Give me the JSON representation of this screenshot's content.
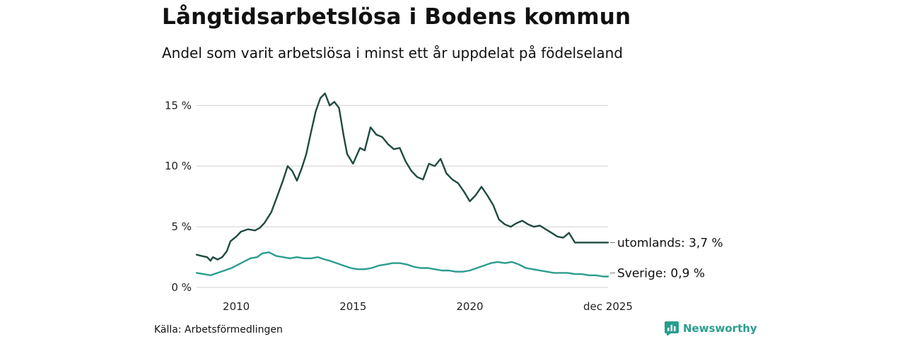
{
  "header": {
    "title": "Långtidsarbetslösa i Bodens kommun",
    "subtitle": "Andel som varit arbetslösa i minst ett år uppdelat på födelseland"
  },
  "footer": {
    "source": "Källa: Arbetsförmedlingen",
    "brand": "Newsworthy"
  },
  "colors": {
    "utomlands": "#1f4a42",
    "sverige": "#2a9d8f",
    "grid": "#d9d9d9"
  },
  "chart_data": {
    "type": "line",
    "title": "Långtidsarbetslösa i Bodens kommun",
    "xlabel": "",
    "ylabel": "",
    "xlim": [
      2008.3,
      2025.92
    ],
    "ylim": [
      0,
      17
    ],
    "y_ticks": [
      {
        "value": 0,
        "label": "0 %"
      },
      {
        "value": 5,
        "label": "5 %"
      },
      {
        "value": 10,
        "label": "10 %"
      },
      {
        "value": 15,
        "label": "15 %"
      }
    ],
    "x_ticks": [
      {
        "value": 2010,
        "label": "2010"
      },
      {
        "value": 2015,
        "label": "2015"
      },
      {
        "value": 2020,
        "label": "2020"
      },
      {
        "value": 2025.92,
        "label": "dec 2025"
      }
    ],
    "grid": true,
    "series": [
      {
        "name": "utomlands",
        "end_label": "utomlands: 3,7 %",
        "x": [
          2008.3,
          2008.5,
          2008.75,
          2008.9,
          2009.0,
          2009.2,
          2009.4,
          2009.6,
          2009.75,
          2010.0,
          2010.2,
          2010.5,
          2010.8,
          2011.0,
          2011.2,
          2011.5,
          2011.75,
          2012.0,
          2012.2,
          2012.4,
          2012.6,
          2012.8,
          2013.0,
          2013.2,
          2013.4,
          2013.6,
          2013.8,
          2013.9,
          2014.0,
          2014.2,
          2014.4,
          2014.6,
          2014.75,
          2015.0,
          2015.3,
          2015.5,
          2015.75,
          2016.0,
          2016.25,
          2016.5,
          2016.75,
          2017.0,
          2017.25,
          2017.5,
          2017.75,
          2018.0,
          2018.25,
          2018.5,
          2018.75,
          2019.0,
          2019.25,
          2019.5,
          2019.75,
          2020.0,
          2020.25,
          2020.5,
          2020.75,
          2021.0,
          2021.25,
          2021.5,
          2021.75,
          2022.0,
          2022.25,
          2022.5,
          2022.75,
          2023.0,
          2023.25,
          2023.5,
          2023.75,
          2024.0,
          2024.25,
          2024.5,
          2024.75,
          2025.0,
          2025.25,
          2025.5,
          2025.75,
          2025.92
        ],
        "values": [
          2.7,
          2.6,
          2.5,
          2.2,
          2.5,
          2.3,
          2.5,
          3.0,
          3.8,
          4.2,
          4.6,
          4.8,
          4.7,
          4.9,
          5.3,
          6.2,
          7.5,
          8.8,
          10.0,
          9.6,
          8.8,
          9.8,
          11.0,
          12.8,
          14.5,
          15.6,
          16.0,
          15.5,
          15.0,
          15.3,
          14.8,
          12.5,
          11.0,
          10.2,
          11.5,
          11.3,
          13.2,
          12.6,
          12.4,
          11.8,
          11.4,
          11.5,
          10.4,
          9.6,
          9.1,
          8.9,
          10.2,
          10.0,
          10.6,
          9.4,
          8.9,
          8.6,
          7.9,
          7.1,
          7.6,
          8.3,
          7.6,
          6.8,
          5.6,
          5.2,
          5.0,
          5.3,
          5.5,
          5.2,
          5.0,
          5.1,
          4.8,
          4.5,
          4.2,
          4.1,
          4.5,
          3.7,
          3.7,
          3.7,
          3.7,
          3.7,
          3.7,
          3.7
        ]
      },
      {
        "name": "Sverige",
        "end_label": "Sverige: 0,9 %",
        "x": [
          2008.3,
          2008.6,
          2008.9,
          2009.2,
          2009.5,
          2009.8,
          2010.0,
          2010.3,
          2010.6,
          2010.9,
          2011.1,
          2011.4,
          2011.7,
          2012.0,
          2012.3,
          2012.6,
          2012.9,
          2013.2,
          2013.5,
          2013.8,
          2014.0,
          2014.3,
          2014.6,
          2014.9,
          2015.2,
          2015.5,
          2015.8,
          2016.1,
          2016.4,
          2016.7,
          2017.0,
          2017.3,
          2017.6,
          2017.9,
          2018.2,
          2018.5,
          2018.8,
          2019.1,
          2019.4,
          2019.7,
          2020.0,
          2020.3,
          2020.6,
          2020.9,
          2021.2,
          2021.5,
          2021.8,
          2022.1,
          2022.4,
          2022.7,
          2023.0,
          2023.3,
          2023.6,
          2023.9,
          2024.2,
          2024.5,
          2024.8,
          2025.1,
          2025.4,
          2025.7,
          2025.92
        ],
        "values": [
          1.2,
          1.1,
          1.0,
          1.2,
          1.4,
          1.6,
          1.8,
          2.1,
          2.4,
          2.5,
          2.8,
          2.9,
          2.6,
          2.5,
          2.4,
          2.5,
          2.4,
          2.4,
          2.5,
          2.3,
          2.2,
          2.0,
          1.8,
          1.6,
          1.5,
          1.5,
          1.6,
          1.8,
          1.9,
          2.0,
          2.0,
          1.9,
          1.7,
          1.6,
          1.6,
          1.5,
          1.4,
          1.4,
          1.3,
          1.3,
          1.4,
          1.6,
          1.8,
          2.0,
          2.1,
          2.0,
          2.1,
          1.9,
          1.6,
          1.5,
          1.4,
          1.3,
          1.2,
          1.2,
          1.2,
          1.1,
          1.1,
          1.0,
          1.0,
          0.9,
          0.9
        ]
      }
    ]
  }
}
